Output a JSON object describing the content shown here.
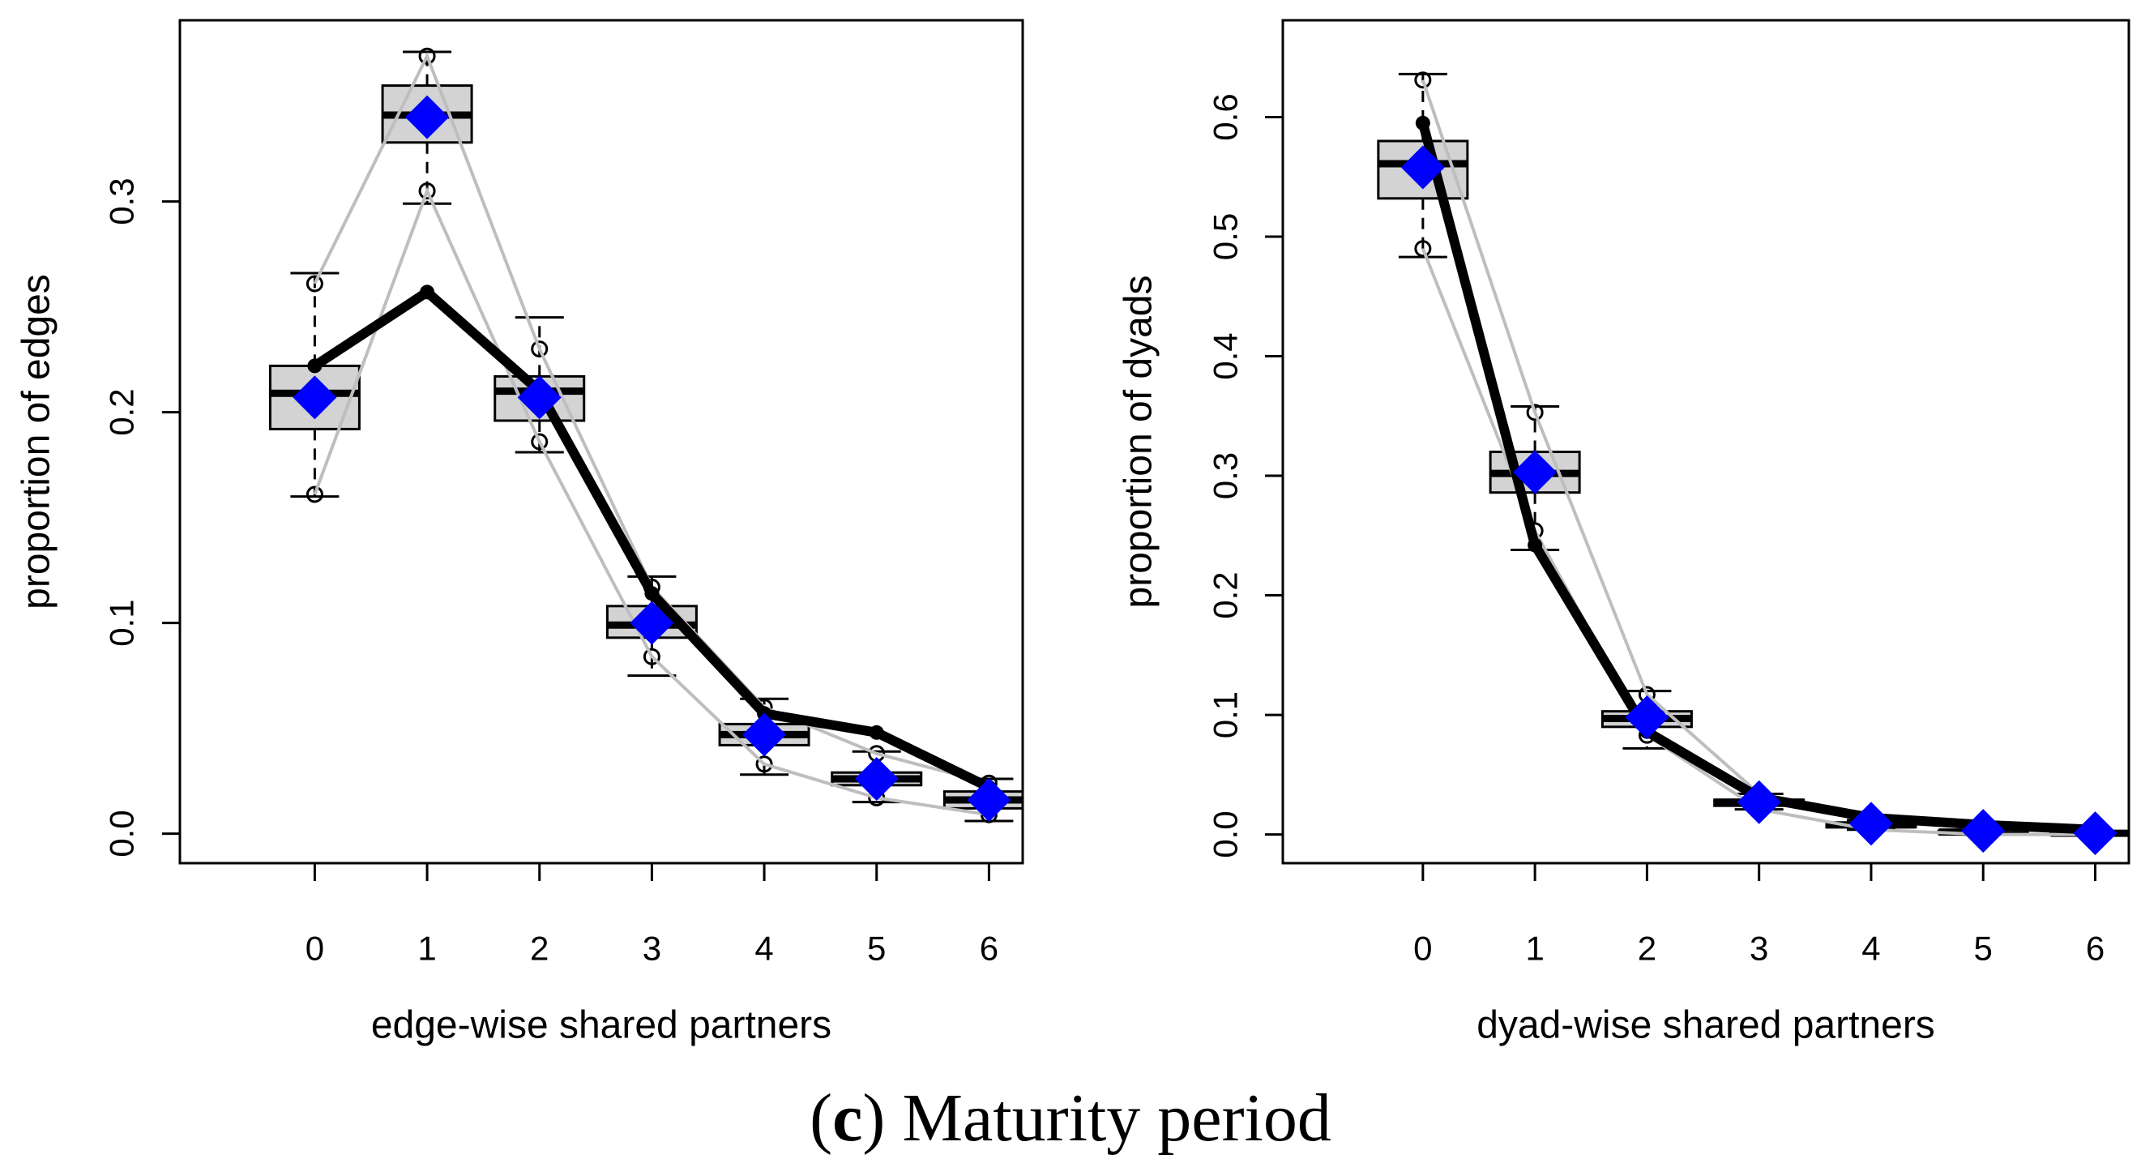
{
  "caption": {
    "letter": "c",
    "text": "Maturity period"
  },
  "colors": {
    "box_fill": "#d3d3d3",
    "observed": "#000000",
    "bounds": "#bebebe",
    "mean_marker": "#0000ff"
  },
  "chart_data": [
    {
      "type": "boxplot",
      "title": "",
      "xlabel": "edge-wise shared partners",
      "ylabel": "proportion of edges",
      "x_ticks": [
        "0",
        "1",
        "2",
        "3",
        "4",
        "5",
        "6"
      ],
      "y_ticks": [
        "0.0",
        "0.1",
        "0.2",
        "0.3"
      ],
      "xlim": [
        -1.2,
        6.3
      ],
      "ylim": [
        -0.014,
        0.386
      ],
      "boxes": [
        {
          "x": 0,
          "whisker_low": 0.16,
          "q1": 0.192,
          "median": 0.209,
          "q3": 0.222,
          "whisker_high": 0.266
        },
        {
          "x": 1,
          "whisker_low": 0.299,
          "q1": 0.328,
          "median": 0.341,
          "q3": 0.355,
          "whisker_high": 0.371
        },
        {
          "x": 2,
          "whisker_low": 0.181,
          "q1": 0.196,
          "median": 0.21,
          "q3": 0.217,
          "whisker_high": 0.245
        },
        {
          "x": 3,
          "whisker_low": 0.075,
          "q1": 0.093,
          "median": 0.099,
          "q3": 0.108,
          "whisker_high": 0.122
        },
        {
          "x": 4,
          "whisker_low": 0.028,
          "q1": 0.042,
          "median": 0.047,
          "q3": 0.052,
          "whisker_high": 0.064
        },
        {
          "x": 5,
          "whisker_low": 0.015,
          "q1": 0.023,
          "median": 0.026,
          "q3": 0.029,
          "whisker_high": 0.039
        },
        {
          "x": 6,
          "whisker_low": 0.006,
          "q1": 0.012,
          "median": 0.016,
          "q3": 0.02,
          "whisker_high": 0.026
        }
      ],
      "outliers": [
        {
          "x": 0,
          "y": 0.261
        },
        {
          "x": 0,
          "y": 0.161
        },
        {
          "x": 1,
          "y": 0.369
        },
        {
          "x": 1,
          "y": 0.305
        },
        {
          "x": 2,
          "y": 0.23
        },
        {
          "x": 2,
          "y": 0.186
        },
        {
          "x": 3,
          "y": 0.117
        },
        {
          "x": 3,
          "y": 0.084
        },
        {
          "x": 4,
          "y": 0.06
        },
        {
          "x": 4,
          "y": 0.033
        },
        {
          "x": 5,
          "y": 0.038
        },
        {
          "x": 5,
          "y": 0.017
        },
        {
          "x": 6,
          "y": 0.024
        },
        {
          "x": 6,
          "y": 0.009
        }
      ],
      "series": [
        {
          "name": "observed",
          "style": "thick black line with dots",
          "x": [
            0,
            1,
            2,
            3,
            4,
            5,
            6
          ],
          "y": [
            0.222,
            0.257,
            0.21,
            0.114,
            0.057,
            0.048,
            0.022
          ]
        },
        {
          "name": "upper bound",
          "style": "thin gray line",
          "x": [
            0,
            1,
            2,
            3,
            4,
            5,
            6
          ],
          "y": [
            0.261,
            0.369,
            0.23,
            0.117,
            0.06,
            0.038,
            0.024
          ]
        },
        {
          "name": "lower bound",
          "style": "thin gray line",
          "x": [
            0,
            1,
            2,
            3,
            4,
            5,
            6
          ],
          "y": [
            0.161,
            0.305,
            0.186,
            0.084,
            0.033,
            0.017,
            0.009
          ]
        },
        {
          "name": "mean",
          "style": "blue diamond",
          "x": [
            0,
            1,
            2,
            3,
            4,
            5,
            6
          ],
          "y": [
            0.207,
            0.34,
            0.207,
            0.1,
            0.047,
            0.026,
            0.016
          ]
        }
      ]
    },
    {
      "type": "boxplot",
      "title": "",
      "xlabel": "dyad-wise shared partners",
      "ylabel": "proportion of dyads",
      "x_ticks": [
        "0",
        "1",
        "2",
        "3",
        "4",
        "5",
        "6"
      ],
      "y_ticks": [
        "0.0",
        "0.1",
        "0.2",
        "0.3",
        "0.4",
        "0.5",
        "0.6"
      ],
      "xlim": [
        -1.25,
        6.3
      ],
      "ylim": [
        -0.024,
        0.681
      ],
      "boxes": [
        {
          "x": 0,
          "whisker_low": 0.483,
          "q1": 0.532,
          "median": 0.561,
          "q3": 0.58,
          "whisker_high": 0.636
        },
        {
          "x": 1,
          "whisker_low": 0.238,
          "q1": 0.286,
          "median": 0.302,
          "q3": 0.32,
          "whisker_high": 0.358
        },
        {
          "x": 2,
          "whisker_low": 0.072,
          "q1": 0.09,
          "median": 0.097,
          "q3": 0.103,
          "whisker_high": 0.12
        },
        {
          "x": 3,
          "whisker_low": 0.021,
          "q1": 0.024,
          "median": 0.027,
          "q3": 0.029,
          "whisker_high": 0.034
        },
        {
          "x": 4,
          "whisker_low": 0.004,
          "q1": 0.006,
          "median": 0.008,
          "q3": 0.009,
          "whisker_high": 0.012
        },
        {
          "x": 5,
          "whisker_low": 0.0,
          "q1": 0.001,
          "median": 0.002,
          "q3": 0.003,
          "whisker_high": 0.005
        },
        {
          "x": 6,
          "whisker_low": 0.0,
          "q1": 0.0,
          "median": 0.001,
          "q3": 0.001,
          "whisker_high": 0.002
        }
      ],
      "outliers": [
        {
          "x": 0,
          "y": 0.631
        },
        {
          "x": 0,
          "y": 0.49
        },
        {
          "x": 1,
          "y": 0.353
        },
        {
          "x": 1,
          "y": 0.254
        },
        {
          "x": 2,
          "y": 0.117
        },
        {
          "x": 2,
          "y": 0.083
        }
      ],
      "series": [
        {
          "name": "observed",
          "style": "thick black line with dots",
          "x": [
            0,
            1,
            2,
            3,
            4,
            5,
            6
          ],
          "y": [
            0.595,
            0.242,
            0.086,
            0.031,
            0.014,
            0.008,
            0.004
          ]
        },
        {
          "name": "upper bound",
          "style": "thin gray line",
          "x": [
            0,
            1,
            2,
            3,
            4,
            5,
            6
          ],
          "y": [
            0.631,
            0.353,
            0.117,
            0.034,
            0.012,
            0.005,
            0.002
          ]
        },
        {
          "name": "lower bound",
          "style": "thin gray line",
          "x": [
            0,
            1,
            2,
            3,
            4,
            5,
            6
          ],
          "y": [
            0.49,
            0.254,
            0.083,
            0.021,
            0.004,
            0.0,
            0.0
          ]
        },
        {
          "name": "mean",
          "style": "blue diamond",
          "x": [
            0,
            1,
            2,
            3,
            4,
            5,
            6
          ],
          "y": [
            0.558,
            0.303,
            0.098,
            0.027,
            0.009,
            0.003,
            0.001
          ]
        }
      ]
    }
  ]
}
